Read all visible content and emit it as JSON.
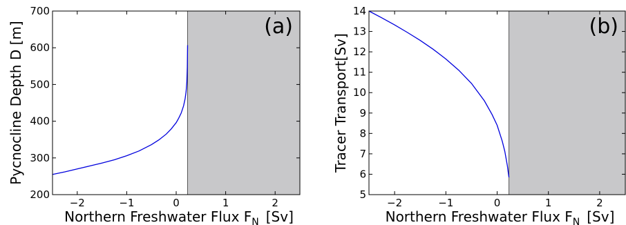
{
  "colors": {
    "line": "#0000dd",
    "shade": "#c8c8ca"
  },
  "chart_data": [
    {
      "type": "line",
      "panel_label": "(a)",
      "xlabel": "Northern Freshwater Flux F",
      "xlabel_sub": "N",
      "xlabel_unit": "[Sv]",
      "ylabel": "Pycnocline Depth D [m]",
      "xlim": [
        -2.5,
        2.5
      ],
      "ylim": [
        200,
        700
      ],
      "xticks": [
        -2,
        -1,
        0,
        1,
        2
      ],
      "yticks": [
        200,
        300,
        400,
        500,
        600,
        700
      ],
      "shaded_region_x": [
        0.23,
        2.5
      ],
      "grid": false,
      "series": [
        {
          "x": [
            -2.5,
            -2.25,
            -2.0,
            -1.75,
            -1.5,
            -1.25,
            -1.0,
            -0.75,
            -0.5,
            -0.35,
            -0.2,
            -0.1,
            0.0,
            0.05,
            0.1,
            0.15,
            0.18,
            0.2,
            0.215,
            0.225,
            0.23
          ],
          "y": [
            255,
            262,
            270,
            278,
            286,
            295,
            306,
            319,
            336,
            349,
            365,
            379,
            396,
            408,
            422,
            442,
            461,
            480,
            507,
            547,
            607
          ]
        }
      ]
    },
    {
      "type": "line",
      "panel_label": "(b)",
      "xlabel": "Northern Freshwater Flux F",
      "xlabel_sub": "N",
      "xlabel_unit": "[Sv]",
      "ylabel": "Tracer Transport[Sv]",
      "xlim": [
        -2.5,
        2.5
      ],
      "ylim": [
        5,
        14
      ],
      "xticks": [
        -2,
        -1,
        0,
        1,
        2
      ],
      "yticks": [
        5,
        6,
        7,
        8,
        9,
        10,
        11,
        12,
        13,
        14
      ],
      "shaded_region_x": [
        0.23,
        2.5
      ],
      "grid": false,
      "series": [
        {
          "x": [
            -2.5,
            -2.25,
            -2.0,
            -1.75,
            -1.5,
            -1.25,
            -1.0,
            -0.75,
            -0.5,
            -0.25,
            -0.1,
            0.0,
            0.1,
            0.15,
            0.2,
            0.22,
            0.23
          ],
          "y": [
            14.0,
            13.67,
            13.32,
            12.95,
            12.56,
            12.13,
            11.65,
            11.1,
            10.45,
            9.6,
            8.93,
            8.4,
            7.62,
            7.12,
            6.42,
            6.03,
            5.85
          ]
        }
      ]
    }
  ]
}
